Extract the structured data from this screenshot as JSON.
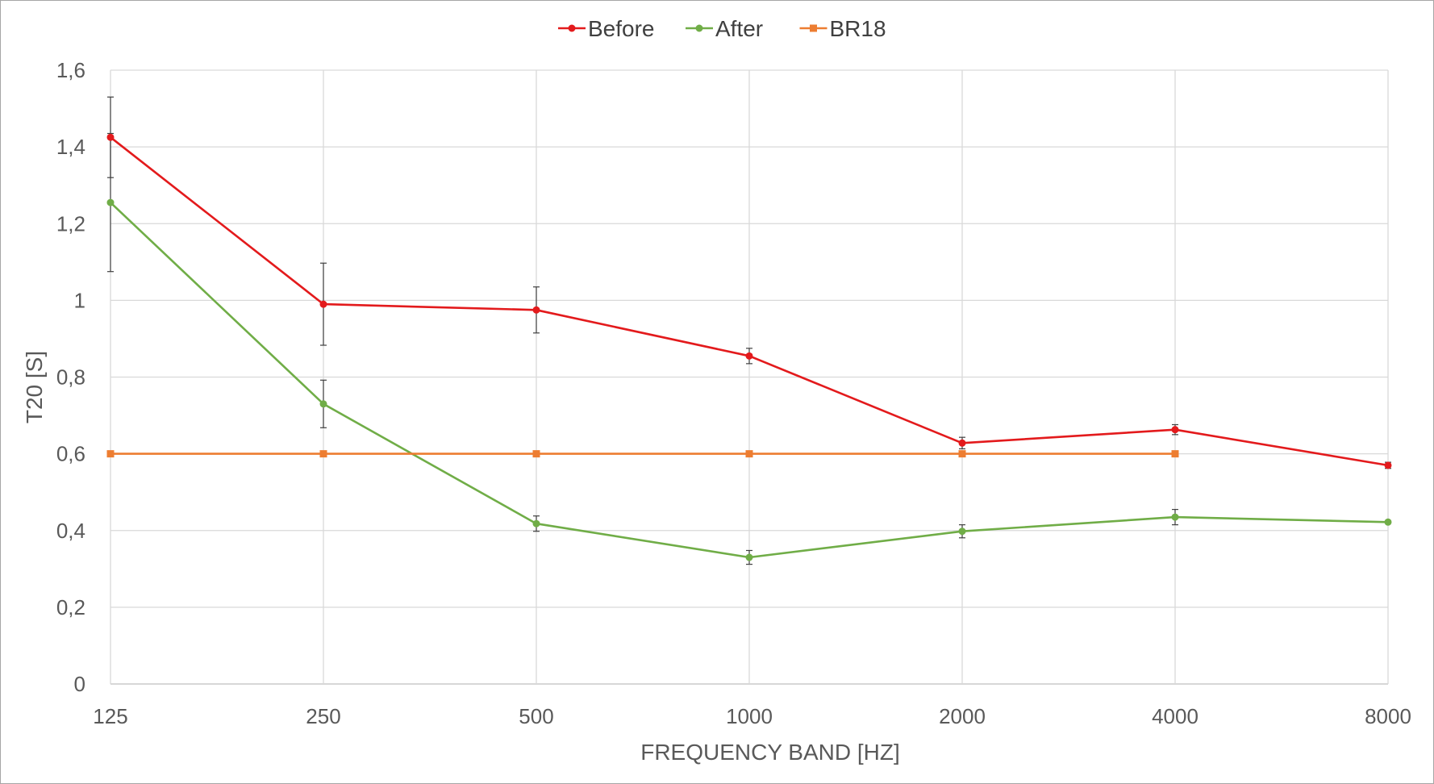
{
  "chart_data": {
    "type": "line",
    "title": "",
    "xlabel": "FREQUENCY BAND [HZ]",
    "ylabel": "T20 [S]",
    "categories": [
      "125",
      "250",
      "500",
      "1000",
      "2000",
      "4000",
      "8000"
    ],
    "y_ticks": [
      "0",
      "0,2",
      "0,4",
      "0,6",
      "0,8",
      "1",
      "1,2",
      "1,4",
      "1,6"
    ],
    "ylim": [
      0,
      1.6
    ],
    "grid": true,
    "legend_position": "top",
    "series": [
      {
        "name": "Before",
        "color": "#e31a1c",
        "marker": "circle",
        "values": [
          1.425,
          0.99,
          0.975,
          0.855,
          0.628,
          0.663,
          0.57
        ],
        "error": [
          0.105,
          0.107,
          0.06,
          0.02,
          0.015,
          0.013,
          0.008
        ]
      },
      {
        "name": "After",
        "color": "#70ad47",
        "marker": "circle",
        "values": [
          1.255,
          0.73,
          0.418,
          0.33,
          0.398,
          0.435,
          0.422
        ],
        "error": [
          0.18,
          0.062,
          0.02,
          0.018,
          0.017,
          0.02,
          0.0
        ]
      },
      {
        "name": "BR18",
        "color": "#ed7d31",
        "marker": "square",
        "values": [
          0.6,
          0.6,
          0.6,
          0.6,
          0.6,
          0.6,
          null
        ],
        "error": null
      }
    ]
  }
}
